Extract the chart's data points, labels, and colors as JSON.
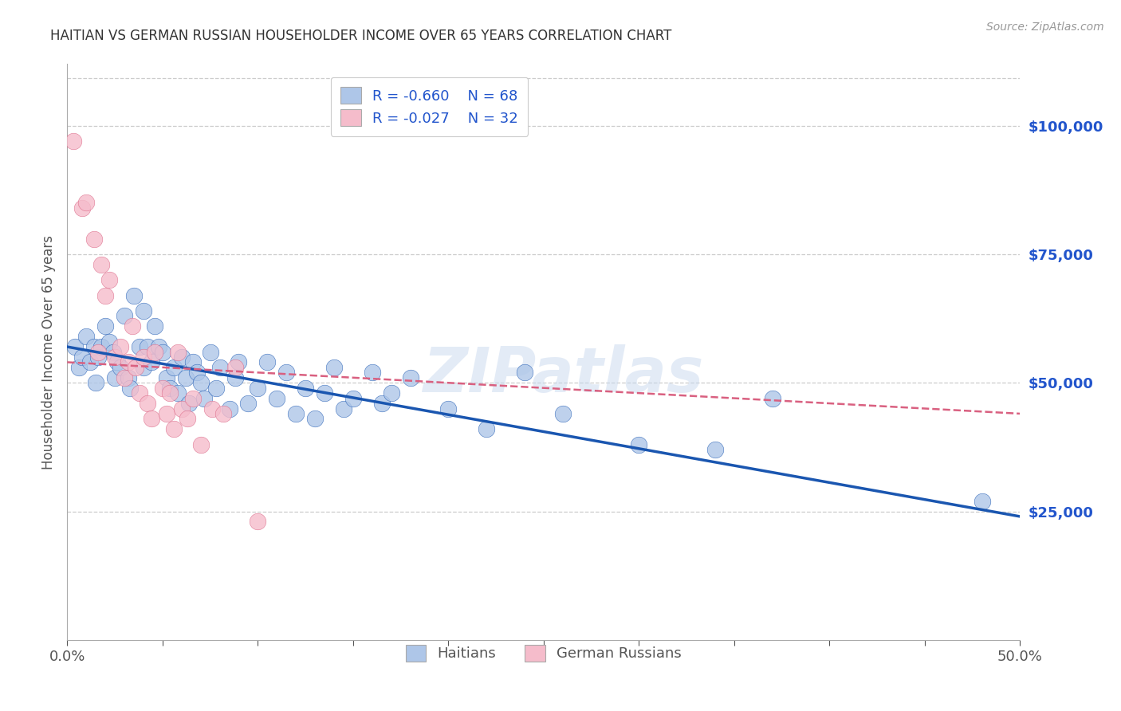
{
  "title": "HAITIAN VS GERMAN RUSSIAN HOUSEHOLDER INCOME OVER 65 YEARS CORRELATION CHART",
  "source": "Source: ZipAtlas.com",
  "ylabel": "Householder Income Over 65 years",
  "legend_labels": [
    "Haitians",
    "German Russians"
  ],
  "legend_r": [
    "R = -0.660",
    "R = -0.027"
  ],
  "legend_n": [
    "N = 68",
    "N = 32"
  ],
  "ytick_labels": [
    "$25,000",
    "$50,000",
    "$75,000",
    "$100,000"
  ],
  "ytick_values": [
    25000,
    50000,
    75000,
    100000
  ],
  "ymin": 0,
  "ymax": 112000,
  "xmin": 0.0,
  "xmax": 0.5,
  "xtick_positions": [
    0.0,
    0.05,
    0.1,
    0.15,
    0.2,
    0.25,
    0.3,
    0.35,
    0.4,
    0.45,
    0.5
  ],
  "xtick_labels_show": [
    "0.0%",
    "",
    "",
    "",
    "",
    "",
    "",
    "",
    "",
    "",
    "50.0%"
  ],
  "blue_color": "#aec6e8",
  "blue_line_color": "#1a56b0",
  "pink_color": "#f5bccb",
  "pink_line_color": "#d96080",
  "blue_scatter": [
    [
      0.004,
      57000
    ],
    [
      0.006,
      53000
    ],
    [
      0.008,
      55000
    ],
    [
      0.01,
      59000
    ],
    [
      0.012,
      54000
    ],
    [
      0.014,
      57000
    ],
    [
      0.015,
      50000
    ],
    [
      0.016,
      55000
    ],
    [
      0.018,
      57000
    ],
    [
      0.02,
      61000
    ],
    [
      0.022,
      58000
    ],
    [
      0.024,
      56000
    ],
    [
      0.025,
      51000
    ],
    [
      0.026,
      54000
    ],
    [
      0.028,
      53000
    ],
    [
      0.03,
      63000
    ],
    [
      0.032,
      51000
    ],
    [
      0.033,
      49000
    ],
    [
      0.035,
      67000
    ],
    [
      0.038,
      57000
    ],
    [
      0.04,
      64000
    ],
    [
      0.04,
      53000
    ],
    [
      0.042,
      57000
    ],
    [
      0.044,
      54000
    ],
    [
      0.046,
      61000
    ],
    [
      0.048,
      57000
    ],
    [
      0.05,
      56000
    ],
    [
      0.052,
      51000
    ],
    [
      0.054,
      49000
    ],
    [
      0.056,
      53000
    ],
    [
      0.058,
      48000
    ],
    [
      0.06,
      55000
    ],
    [
      0.062,
      51000
    ],
    [
      0.064,
      46000
    ],
    [
      0.066,
      54000
    ],
    [
      0.068,
      52000
    ],
    [
      0.07,
      50000
    ],
    [
      0.072,
      47000
    ],
    [
      0.075,
      56000
    ],
    [
      0.078,
      49000
    ],
    [
      0.08,
      53000
    ],
    [
      0.085,
      45000
    ],
    [
      0.088,
      51000
    ],
    [
      0.09,
      54000
    ],
    [
      0.095,
      46000
    ],
    [
      0.1,
      49000
    ],
    [
      0.105,
      54000
    ],
    [
      0.11,
      47000
    ],
    [
      0.115,
      52000
    ],
    [
      0.12,
      44000
    ],
    [
      0.125,
      49000
    ],
    [
      0.13,
      43000
    ],
    [
      0.135,
      48000
    ],
    [
      0.14,
      53000
    ],
    [
      0.145,
      45000
    ],
    [
      0.15,
      47000
    ],
    [
      0.16,
      52000
    ],
    [
      0.165,
      46000
    ],
    [
      0.17,
      48000
    ],
    [
      0.18,
      51000
    ],
    [
      0.2,
      45000
    ],
    [
      0.22,
      41000
    ],
    [
      0.24,
      52000
    ],
    [
      0.26,
      44000
    ],
    [
      0.3,
      38000
    ],
    [
      0.34,
      37000
    ],
    [
      0.37,
      47000
    ],
    [
      0.48,
      27000
    ]
  ],
  "pink_scatter": [
    [
      0.003,
      97000
    ],
    [
      0.008,
      84000
    ],
    [
      0.01,
      85000
    ],
    [
      0.014,
      78000
    ],
    [
      0.016,
      56000
    ],
    [
      0.018,
      73000
    ],
    [
      0.02,
      67000
    ],
    [
      0.022,
      70000
    ],
    [
      0.025,
      55000
    ],
    [
      0.028,
      57000
    ],
    [
      0.03,
      51000
    ],
    [
      0.032,
      54000
    ],
    [
      0.034,
      61000
    ],
    [
      0.036,
      53000
    ],
    [
      0.038,
      48000
    ],
    [
      0.04,
      55000
    ],
    [
      0.042,
      46000
    ],
    [
      0.044,
      43000
    ],
    [
      0.046,
      56000
    ],
    [
      0.05,
      49000
    ],
    [
      0.052,
      44000
    ],
    [
      0.054,
      48000
    ],
    [
      0.056,
      41000
    ],
    [
      0.058,
      56000
    ],
    [
      0.06,
      45000
    ],
    [
      0.063,
      43000
    ],
    [
      0.066,
      47000
    ],
    [
      0.07,
      38000
    ],
    [
      0.076,
      45000
    ],
    [
      0.082,
      44000
    ],
    [
      0.088,
      53000
    ],
    [
      0.1,
      23000
    ]
  ],
  "blue_line_x": [
    0.0,
    0.5
  ],
  "blue_line_y": [
    57000,
    24000
  ],
  "pink_line_x": [
    0.0,
    0.5
  ],
  "pink_line_y": [
    54000,
    44000
  ],
  "watermark": "ZIPatlas",
  "background_color": "#ffffff",
  "grid_color": "#cccccc",
  "title_color": "#333333",
  "axis_label_color": "#555555",
  "right_axis_color": "#2255cc"
}
